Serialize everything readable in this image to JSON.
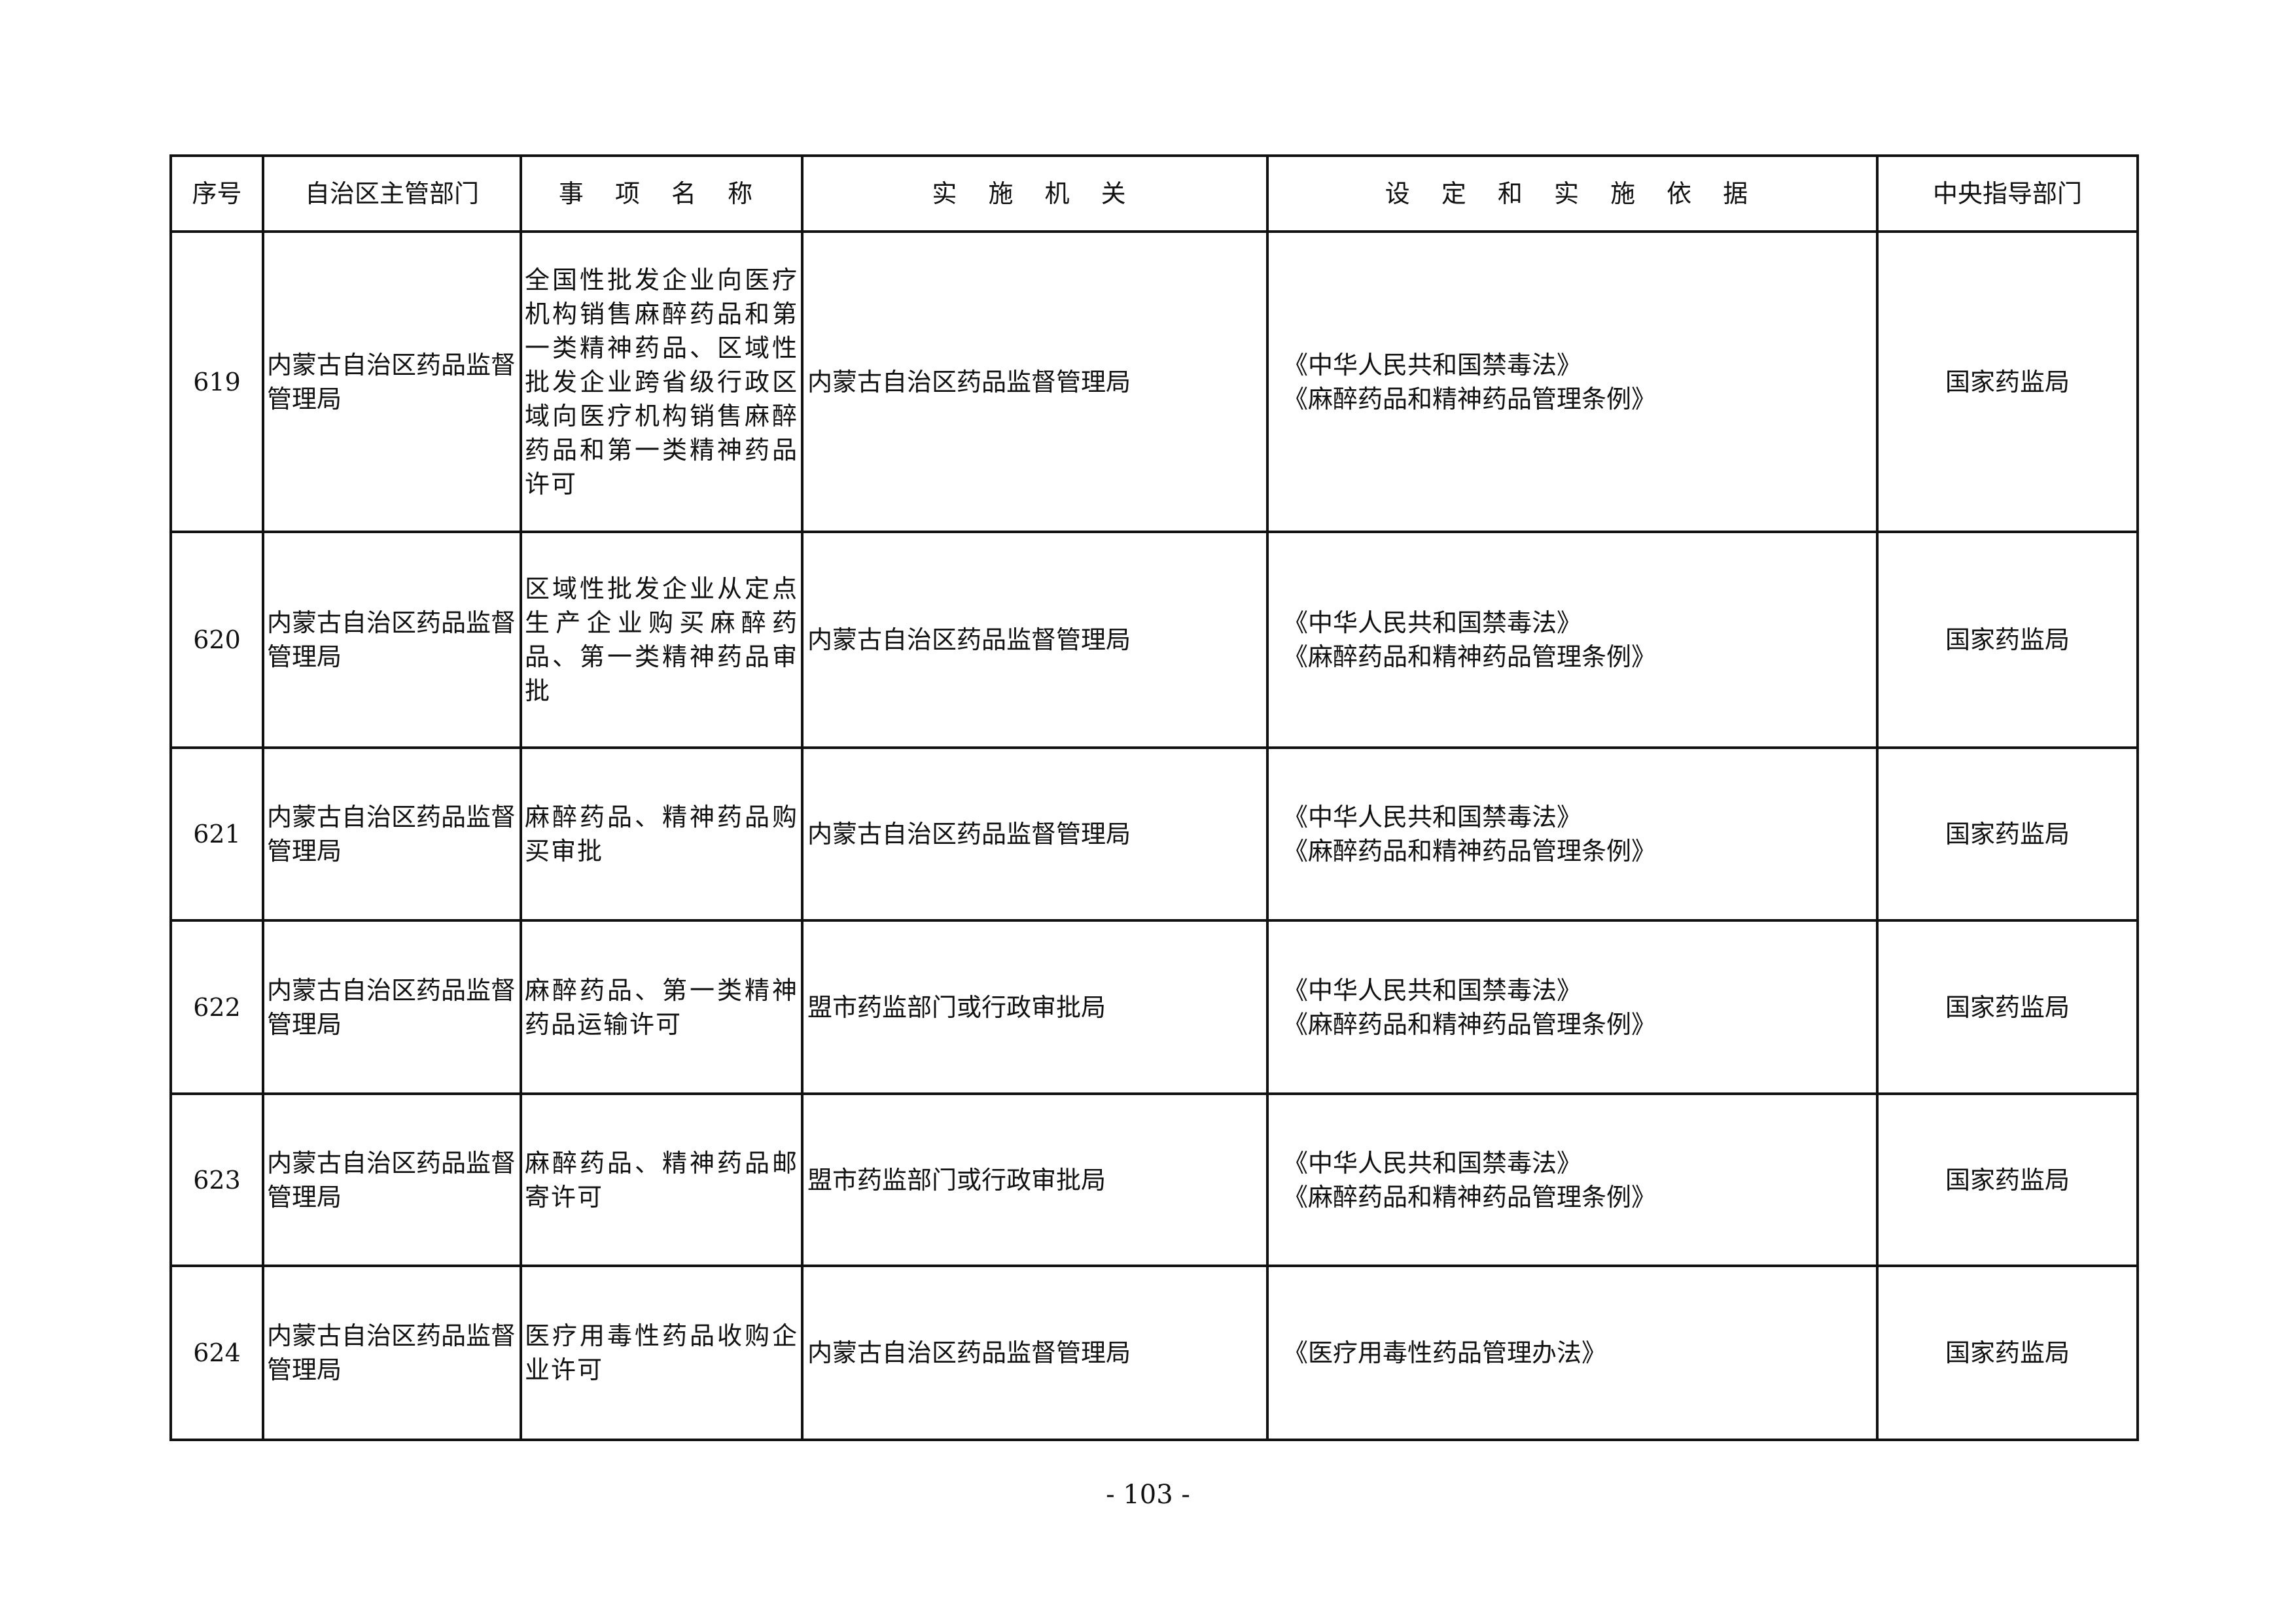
{
  "table": {
    "headers": [
      "序号",
      "自治区主管部门",
      "事 项 名 称",
      "实 施 机 关",
      "设 定 和 实 施 依 据",
      "中央指导部门"
    ],
    "rows": [
      {
        "no": "619",
        "dept": "内蒙古自治区药品监督管理局",
        "item": "全国性批发企业向医疗机构销售麻醉药品和第一类精神药品、区域性批发企业跨省级行政区域向医疗机构销售麻醉药品和第一类精神药品许可",
        "agency": "内蒙古自治区药品监督管理局",
        "basis": [
          "《中华人民共和国禁毒法》",
          "《麻醉药品和精神药品管理条例》"
        ],
        "central": "国家药监局"
      },
      {
        "no": "620",
        "dept": "内蒙古自治区药品监督管理局",
        "item": "区域性批发企业从定点生产企业购买麻醉药品、第一类精神药品审批",
        "agency": "内蒙古自治区药品监督管理局",
        "basis": [
          "《中华人民共和国禁毒法》",
          "《麻醉药品和精神药品管理条例》"
        ],
        "central": "国家药监局"
      },
      {
        "no": "621",
        "dept": "内蒙古自治区药品监督管理局",
        "item": "麻醉药品、精神药品购买审批",
        "agency": "内蒙古自治区药品监督管理局",
        "basis": [
          "《中华人民共和国禁毒法》",
          "《麻醉药品和精神药品管理条例》"
        ],
        "central": "国家药监局"
      },
      {
        "no": "622",
        "dept": "内蒙古自治区药品监督管理局",
        "item": "麻醉药品、第一类精神药品运输许可",
        "agency": "盟市药监部门或行政审批局",
        "basis": [
          "《中华人民共和国禁毒法》",
          "《麻醉药品和精神药品管理条例》"
        ],
        "central": "国家药监局"
      },
      {
        "no": "623",
        "dept": "内蒙古自治区药品监督管理局",
        "item": "麻醉药品、精神药品邮寄许可",
        "agency": "盟市药监部门或行政审批局",
        "basis": [
          "《中华人民共和国禁毒法》",
          "《麻醉药品和精神药品管理条例》"
        ],
        "central": "国家药监局"
      },
      {
        "no": "624",
        "dept": "内蒙古自治区药品监督管理局",
        "item": "医疗用毒性药品收购企业许可",
        "agency": "内蒙古自治区药品监督管理局",
        "basis": [
          "《医疗用毒性药品管理办法》"
        ],
        "central": "国家药监局"
      }
    ]
  },
  "page_number": "- 103 -"
}
